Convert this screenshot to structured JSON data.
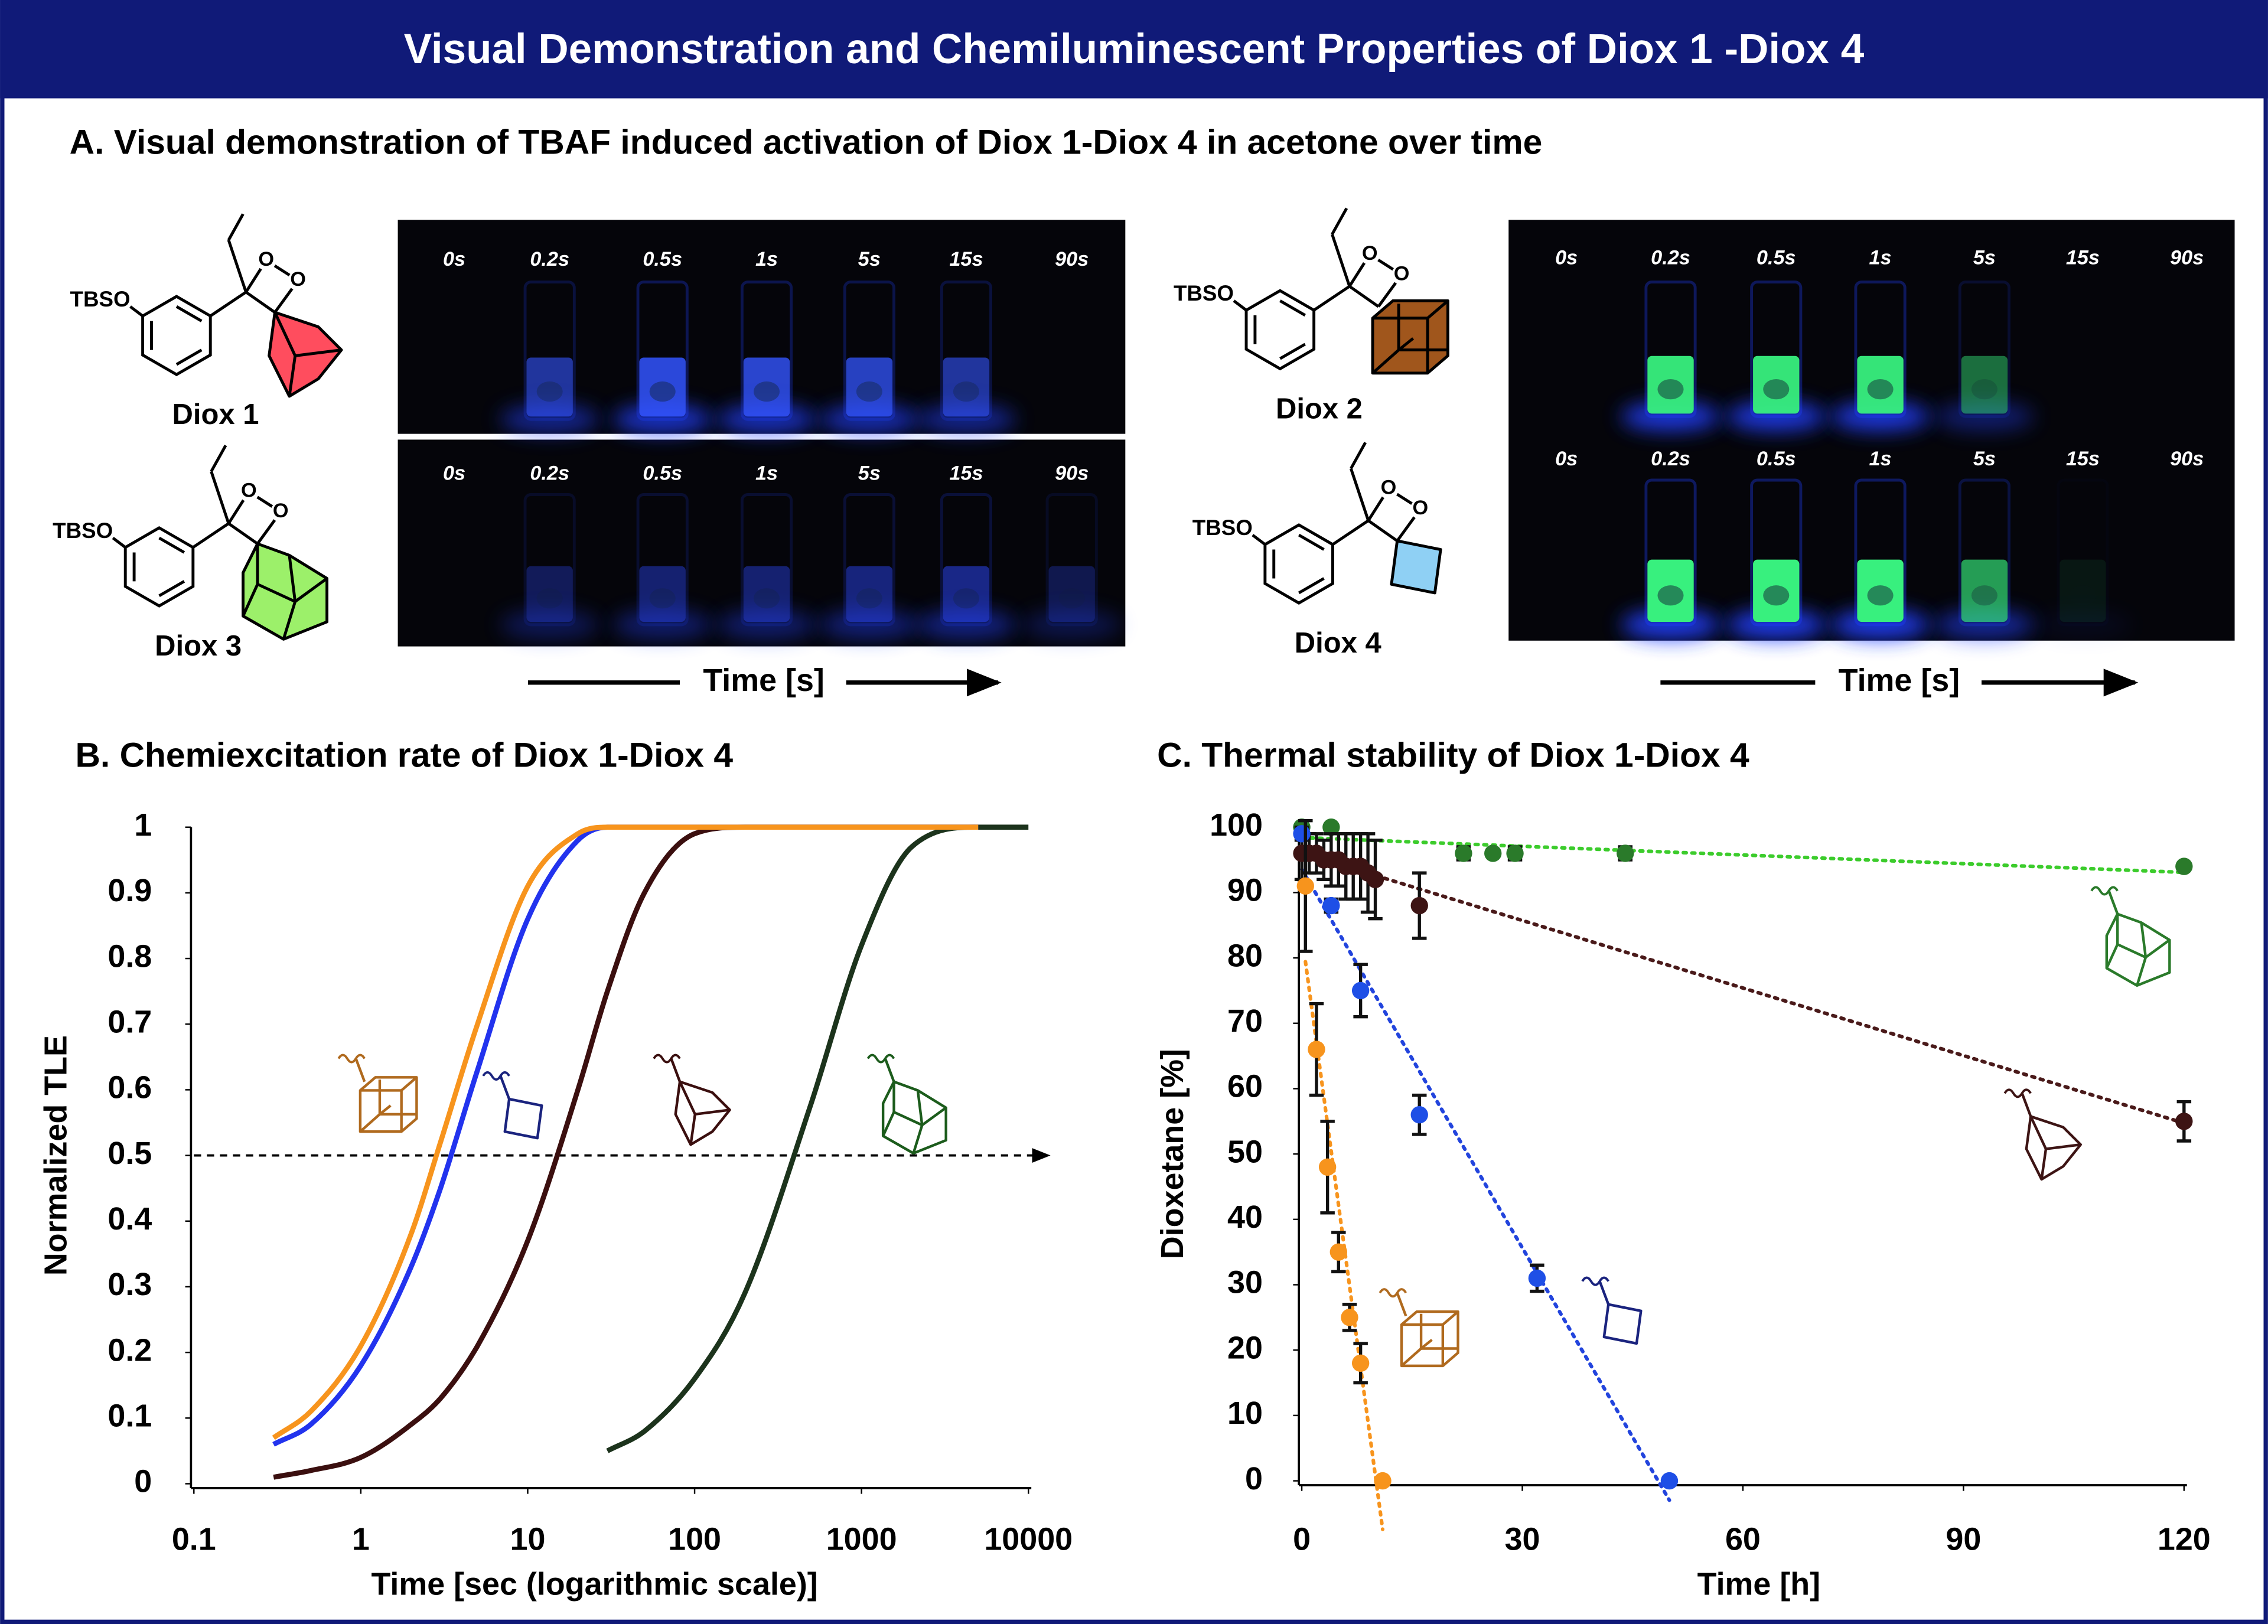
{
  "title": "Visual Demonstration and Chemiluminescent Properties of Diox 1 -Diox 4",
  "panel_a": {
    "title": "A. Visual demonstration of TBAF induced activation of Diox 1-Diox 4 in acetone over time",
    "time_labels": [
      "0s",
      "0.2s",
      "0.5s",
      "1s",
      "5s",
      "15s",
      "90s"
    ],
    "time_axis_label": "Time [s]",
    "structures": [
      {
        "label": "Diox 1",
        "substituent": "TBSO",
        "ring_atoms": [
          "O",
          "O"
        ]
      },
      {
        "label": "Diox 2",
        "substituent": "TBSO",
        "ring_atoms": [
          "O",
          "O"
        ]
      },
      {
        "label": "Diox 3",
        "substituent": "TBSO",
        "ring_atoms": [
          "O",
          "O"
        ]
      },
      {
        "label": "Diox 4",
        "substituent": "TBSO",
        "ring_atoms": [
          "O",
          "O"
        ]
      }
    ]
  },
  "chart_data": [
    {
      "type": "line",
      "title": "B.  Chemiexcitation rate of Diox 1-Diox 4",
      "x_label": "Time [sec (logarithmic scale)]",
      "y_label": "Normalized TLE",
      "x_scale": "log",
      "x": [
        0.3,
        0.5,
        1,
        2,
        3,
        5,
        10,
        20,
        30,
        50,
        100,
        200,
        500,
        1000,
        2000,
        5000,
        10000
      ],
      "series": [
        {
          "color": "#1c331c",
          "values": [
            null,
            null,
            null,
            null,
            null,
            null,
            null,
            null,
            0.05,
            0.08,
            0.16,
            0.29,
            0.58,
            0.82,
            0.97,
            1,
            1
          ]
        },
        {
          "color": "#3b0f0f",
          "values": [
            0.01,
            0.02,
            0.04,
            0.09,
            0.13,
            0.21,
            0.37,
            0.6,
            0.75,
            0.9,
            0.99,
            1,
            1,
            1,
            1,
            1,
            null
          ]
        },
        {
          "color": "#2233ee",
          "values": [
            0.06,
            0.09,
            0.18,
            0.33,
            0.45,
            0.63,
            0.86,
            0.98,
            1,
            1,
            1,
            1,
            1,
            1,
            1,
            1,
            null
          ]
        },
        {
          "color": "#f7941d",
          "values": [
            0.07,
            0.11,
            0.21,
            0.38,
            0.52,
            0.7,
            0.91,
            0.99,
            1,
            1,
            1,
            1,
            1,
            1,
            1,
            1,
            null
          ]
        }
      ],
      "xlim": [
        0.1,
        10000
      ],
      "xticks": [
        0.1,
        1,
        10,
        100,
        1000,
        10000
      ],
      "ylim": [
        0,
        1
      ],
      "yticks": [
        0,
        0.1,
        0.2,
        0.3,
        0.4,
        0.5,
        0.6,
        0.7,
        0.8,
        0.9,
        1
      ],
      "reference_line": 0.5
    },
    {
      "type": "scatter",
      "title": "C.  Thermal stability of Diox 1-Diox 4",
      "x_label": "Time [h]",
      "y_label": "Dioxetane [%]",
      "series": [
        {
          "color": "#2a7a2a",
          "trend_color": "#3ccc2c",
          "x": [
            0,
            4,
            22,
            26,
            29,
            44,
            120
          ],
          "values": [
            100,
            100,
            96,
            96,
            96,
            96,
            94
          ],
          "errors": [
            0,
            0,
            1,
            0,
            1,
            1,
            0
          ]
        },
        {
          "color": "#3d1414",
          "trend_color": "#4a1a1a",
          "x": [
            0,
            1,
            2,
            3,
            4,
            5,
            6,
            7,
            8,
            9,
            10,
            16,
            120
          ],
          "values": [
            96,
            96,
            96,
            95,
            95,
            95,
            94,
            94,
            94,
            93,
            92,
            88,
            55
          ],
          "errors": [
            4,
            3,
            3,
            3,
            4,
            4,
            5,
            5,
            5,
            6,
            6,
            5,
            3
          ]
        },
        {
          "color": "#1e4fe6",
          "trend_color": "#2244dd",
          "x": [
            0,
            4,
            8,
            16,
            32,
            50
          ],
          "values": [
            99,
            88,
            75,
            56,
            31,
            0
          ],
          "errors": [
            1,
            1,
            4,
            3,
            2,
            0
          ]
        },
        {
          "color": "#f7941d",
          "trend_color": "#f7941d",
          "x": [
            0.5,
            2,
            3.5,
            5,
            6.5,
            8,
            11
          ],
          "values": [
            91,
            66,
            48,
            35,
            25,
            18,
            0
          ],
          "errors": [
            10,
            7,
            7,
            3,
            2,
            3,
            0
          ]
        }
      ],
      "xlim": [
        0,
        120
      ],
      "xticks": [
        0,
        30,
        60,
        90,
        120
      ],
      "ylim": [
        0,
        100
      ],
      "yticks": [
        0,
        10,
        20,
        30,
        40,
        50,
        60,
        70,
        80,
        90,
        100
      ]
    }
  ]
}
